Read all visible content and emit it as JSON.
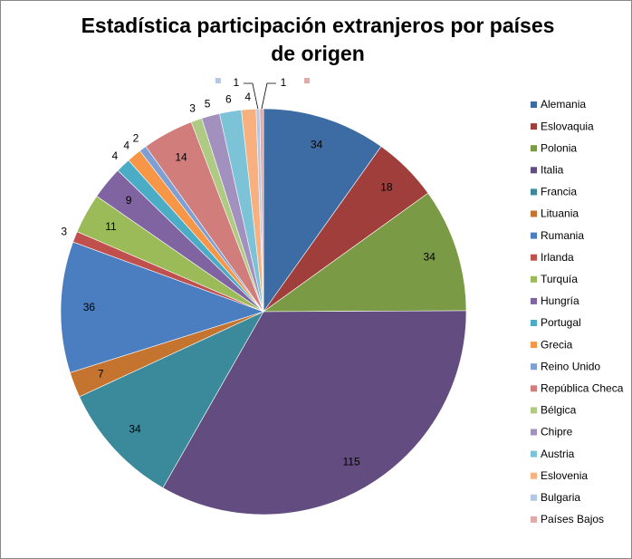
{
  "chart_data": {
    "type": "pie",
    "title": "Estadística participación extranjeros por países de origen",
    "categories": [
      "Alemania",
      "Eslovaquia",
      "Polonia",
      "Italia",
      "Francia",
      "Lituania",
      "Rumania",
      "Irlanda",
      "Turquía",
      "Hungría",
      "Portugal",
      "Grecia",
      "Reino Unido",
      "República Checa",
      "Bélgica",
      "Chipre",
      "Austria",
      "Eslovenia",
      "Bulgaria",
      "Países Bajos"
    ],
    "values": [
      34,
      18,
      34,
      115,
      34,
      7,
      36,
      3,
      11,
      9,
      4,
      4,
      2,
      14,
      3,
      5,
      6,
      4,
      1,
      1
    ],
    "colors": [
      "#3d6ba3",
      "#a03e3b",
      "#7a9a45",
      "#624c80",
      "#3a8a9c",
      "#c4742f",
      "#4a7ec0",
      "#c0504d",
      "#9bbb59",
      "#8064a2",
      "#4bacc6",
      "#f79646",
      "#7d9fd3",
      "#d07d7b",
      "#afcb83",
      "#a290bf",
      "#7cc3d7",
      "#f9b07f",
      "#b4c7e7",
      "#e0aaa9"
    ],
    "legend": "right"
  }
}
